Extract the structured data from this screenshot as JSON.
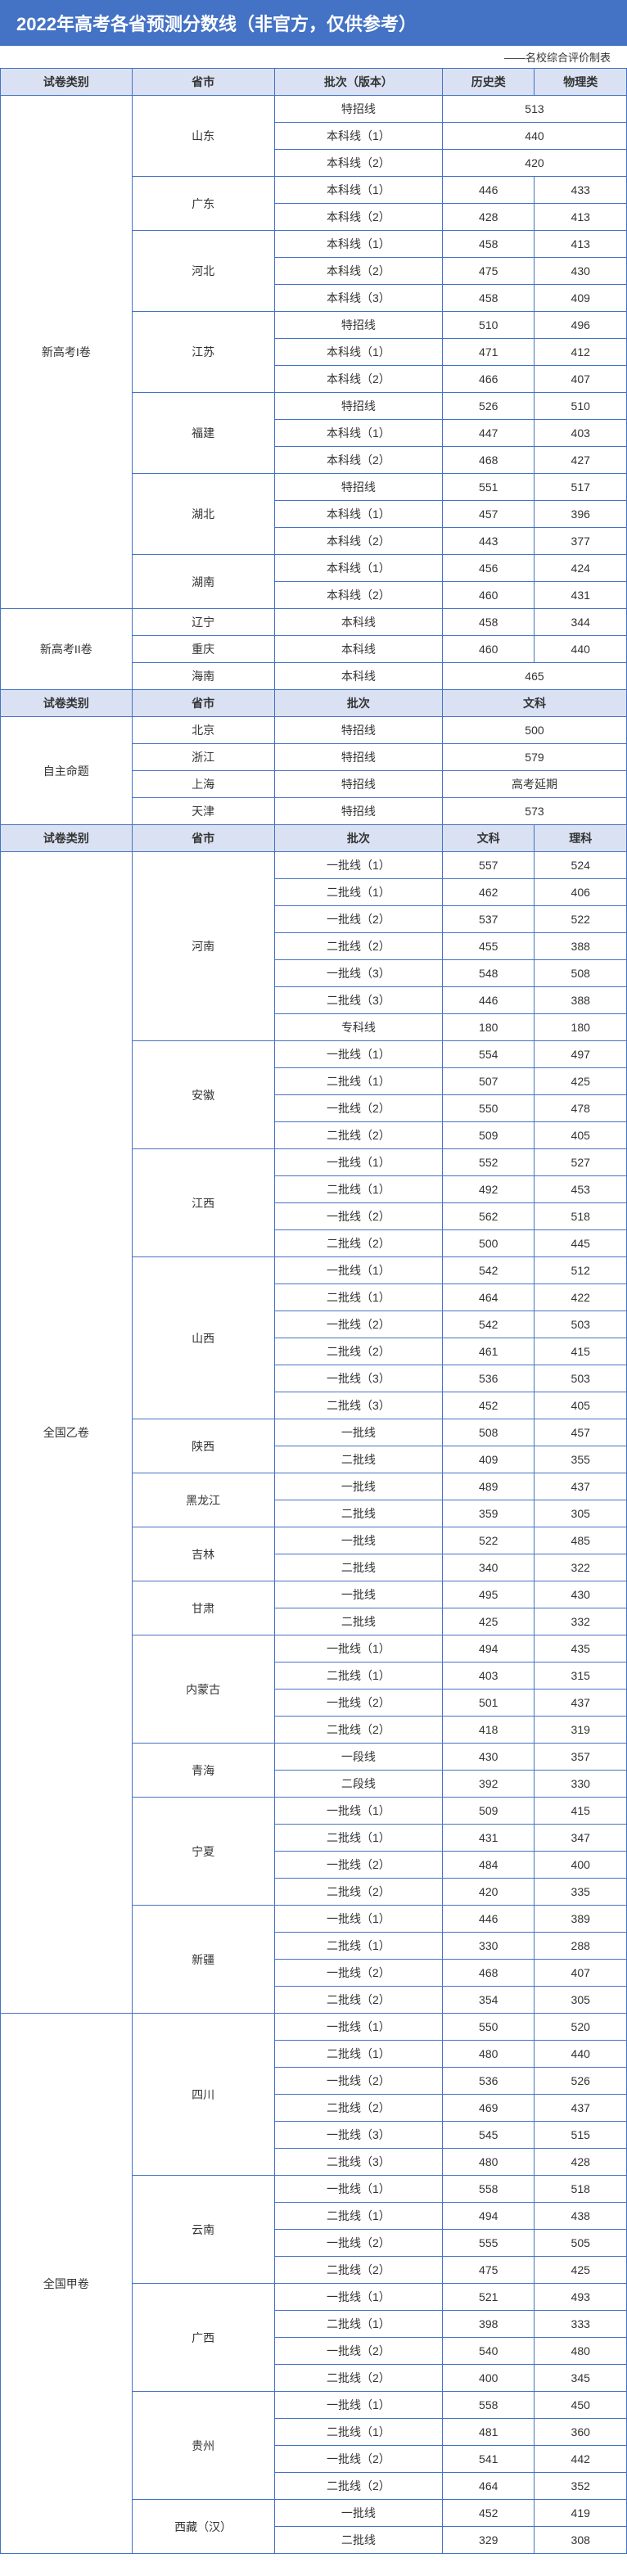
{
  "title": "2022年高考各省预测分数线（非官方，仅供参考）",
  "subtitle": "——名校综合评价制表",
  "colors": {
    "header_bg": "#4472c4",
    "header_text": "#ffffff",
    "subheader_bg": "#d9e1f2",
    "border": "#4472c4",
    "text": "#333333"
  },
  "h1": {
    "c1": "试卷类别",
    "c2": "省市",
    "c3": "批次（版本）",
    "c4": "历史类",
    "c5": "物理类"
  },
  "s1": {
    "label": "新高考I卷",
    "provinces": [
      {
        "name": "山东",
        "rows": [
          {
            "batch": "特招线",
            "a": "513",
            "b": "",
            "merge": true
          },
          {
            "batch": "本科线（1）",
            "a": "440",
            "b": "",
            "merge": true
          },
          {
            "batch": "本科线（2）",
            "a": "420",
            "b": "",
            "merge": true
          }
        ]
      },
      {
        "name": "广东",
        "rows": [
          {
            "batch": "本科线（1）",
            "a": "446",
            "b": "433"
          },
          {
            "batch": "本科线（2）",
            "a": "428",
            "b": "413"
          }
        ]
      },
      {
        "name": "河北",
        "rows": [
          {
            "batch": "本科线（1）",
            "a": "458",
            "b": "413"
          },
          {
            "batch": "本科线（2）",
            "a": "475",
            "b": "430"
          },
          {
            "batch": "本科线（3）",
            "a": "458",
            "b": "409"
          }
        ]
      },
      {
        "name": "江苏",
        "rows": [
          {
            "batch": "特招线",
            "a": "510",
            "b": "496"
          },
          {
            "batch": "本科线（1）",
            "a": "471",
            "b": "412"
          },
          {
            "batch": "本科线（2）",
            "a": "466",
            "b": "407"
          }
        ]
      },
      {
        "name": "福建",
        "rows": [
          {
            "batch": "特招线",
            "a": "526",
            "b": "510"
          },
          {
            "batch": "本科线（1）",
            "a": "447",
            "b": "403"
          },
          {
            "batch": "本科线（2）",
            "a": "468",
            "b": "427"
          }
        ]
      },
      {
        "name": "湖北",
        "rows": [
          {
            "batch": "特招线",
            "a": "551",
            "b": "517"
          },
          {
            "batch": "本科线（1）",
            "a": "457",
            "b": "396"
          },
          {
            "batch": "本科线（2）",
            "a": "443",
            "b": "377"
          }
        ]
      },
      {
        "name": "湖南",
        "rows": [
          {
            "batch": "本科线（1）",
            "a": "456",
            "b": "424"
          },
          {
            "batch": "本科线（2）",
            "a": "460",
            "b": "431"
          }
        ]
      }
    ]
  },
  "s2": {
    "label": "新高考II卷",
    "provinces": [
      {
        "name": "辽宁",
        "rows": [
          {
            "batch": "本科线",
            "a": "458",
            "b": "344"
          }
        ]
      },
      {
        "name": "重庆",
        "rows": [
          {
            "batch": "本科线",
            "a": "460",
            "b": "440"
          }
        ]
      },
      {
        "name": "海南",
        "rows": [
          {
            "batch": "本科线",
            "a": "465",
            "b": "",
            "merge": true
          }
        ]
      }
    ]
  },
  "h3": {
    "c1": "试卷类别",
    "c2": "省市",
    "c3": "批次",
    "c4": "文科",
    "c5": ""
  },
  "s3": {
    "label": "自主命题",
    "provinces": [
      {
        "name": "北京",
        "rows": [
          {
            "batch": "特招线",
            "a": "500",
            "b": "",
            "merge": true
          }
        ]
      },
      {
        "name": "浙江",
        "rows": [
          {
            "batch": "特招线",
            "a": "579",
            "b": "",
            "merge": true
          }
        ]
      },
      {
        "name": "上海",
        "rows": [
          {
            "batch": "特招线",
            "a": "高考延期",
            "b": "",
            "merge": true
          }
        ]
      },
      {
        "name": "天津",
        "rows": [
          {
            "batch": "特招线",
            "a": "573",
            "b": "",
            "merge": true
          }
        ]
      }
    ]
  },
  "h4": {
    "c1": "试卷类别",
    "c2": "省市",
    "c3": "批次",
    "c4": "文科",
    "c5": "理科"
  },
  "s4": {
    "label": "全国乙卷",
    "provinces": [
      {
        "name": "河南",
        "rows": [
          {
            "batch": "一批线（1）",
            "a": "557",
            "b": "524"
          },
          {
            "batch": "二批线（1）",
            "a": "462",
            "b": "406"
          },
          {
            "batch": "一批线（2）",
            "a": "537",
            "b": "522"
          },
          {
            "batch": "二批线（2）",
            "a": "455",
            "b": "388"
          },
          {
            "batch": "一批线（3）",
            "a": "548",
            "b": "508"
          },
          {
            "batch": "二批线（3）",
            "a": "446",
            "b": "388"
          },
          {
            "batch": "专科线",
            "a": "180",
            "b": "180"
          }
        ]
      },
      {
        "name": "安徽",
        "rows": [
          {
            "batch": "一批线（1）",
            "a": "554",
            "b": "497"
          },
          {
            "batch": "二批线（1）",
            "a": "507",
            "b": "425"
          },
          {
            "batch": "一批线（2）",
            "a": "550",
            "b": "478"
          },
          {
            "batch": "二批线（2）",
            "a": "509",
            "b": "405"
          }
        ]
      },
      {
        "name": "江西",
        "rows": [
          {
            "batch": "一批线（1）",
            "a": "552",
            "b": "527"
          },
          {
            "batch": "二批线（1）",
            "a": "492",
            "b": "453"
          },
          {
            "batch": "一批线（2）",
            "a": "562",
            "b": "518"
          },
          {
            "batch": "二批线（2）",
            "a": "500",
            "b": "445"
          }
        ]
      },
      {
        "name": "山西",
        "rows": [
          {
            "batch": "一批线（1）",
            "a": "542",
            "b": "512"
          },
          {
            "batch": "二批线（1）",
            "a": "464",
            "b": "422"
          },
          {
            "batch": "一批线（2）",
            "a": "542",
            "b": "503"
          },
          {
            "batch": "二批线（2）",
            "a": "461",
            "b": "415"
          },
          {
            "batch": "一批线（3）",
            "a": "536",
            "b": "503"
          },
          {
            "batch": "二批线（3）",
            "a": "452",
            "b": "405"
          }
        ]
      },
      {
        "name": "陕西",
        "rows": [
          {
            "batch": "一批线",
            "a": "508",
            "b": "457"
          },
          {
            "batch": "二批线",
            "a": "409",
            "b": "355"
          }
        ]
      },
      {
        "name": "黑龙江",
        "rows": [
          {
            "batch": "一批线",
            "a": "489",
            "b": "437"
          },
          {
            "batch": "二批线",
            "a": "359",
            "b": "305"
          }
        ]
      },
      {
        "name": "吉林",
        "rows": [
          {
            "batch": "一批线",
            "a": "522",
            "b": "485"
          },
          {
            "batch": "二批线",
            "a": "340",
            "b": "322"
          }
        ]
      },
      {
        "name": "甘肃",
        "rows": [
          {
            "batch": "一批线",
            "a": "495",
            "b": "430"
          },
          {
            "batch": "二批线",
            "a": "425",
            "b": "332"
          }
        ]
      },
      {
        "name": "内蒙古",
        "rows": [
          {
            "batch": "一批线（1）",
            "a": "494",
            "b": "435"
          },
          {
            "batch": "二批线（1）",
            "a": "403",
            "b": "315"
          },
          {
            "batch": "一批线（2）",
            "a": "501",
            "b": "437"
          },
          {
            "batch": "二批线（2）",
            "a": "418",
            "b": "319"
          }
        ]
      },
      {
        "name": "青海",
        "rows": [
          {
            "batch": "一段线",
            "a": "430",
            "b": "357"
          },
          {
            "batch": "二段线",
            "a": "392",
            "b": "330"
          }
        ]
      },
      {
        "name": "宁夏",
        "rows": [
          {
            "batch": "一批线（1）",
            "a": "509",
            "b": "415"
          },
          {
            "batch": "二批线（1）",
            "a": "431",
            "b": "347"
          },
          {
            "batch": "一批线（2）",
            "a": "484",
            "b": "400"
          },
          {
            "batch": "二批线（2）",
            "a": "420",
            "b": "335"
          }
        ]
      },
      {
        "name": "新疆",
        "rows": [
          {
            "batch": "一批线（1）",
            "a": "446",
            "b": "389"
          },
          {
            "batch": "二批线（1）",
            "a": "330",
            "b": "288"
          },
          {
            "batch": "一批线（2）",
            "a": "468",
            "b": "407"
          },
          {
            "batch": "二批线（2）",
            "a": "354",
            "b": "305"
          }
        ]
      }
    ]
  },
  "s5": {
    "label": "全国甲卷",
    "provinces": [
      {
        "name": "四川",
        "rows": [
          {
            "batch": "一批线（1）",
            "a": "550",
            "b": "520"
          },
          {
            "batch": "二批线（1）",
            "a": "480",
            "b": "440"
          },
          {
            "batch": "一批线（2）",
            "a": "536",
            "b": "526"
          },
          {
            "batch": "二批线（2）",
            "a": "469",
            "b": "437"
          },
          {
            "batch": "一批线（3）",
            "a": "545",
            "b": "515"
          },
          {
            "batch": "二批线（3）",
            "a": "480",
            "b": "428"
          }
        ]
      },
      {
        "name": "云南",
        "rows": [
          {
            "batch": "一批线（1）",
            "a": "558",
            "b": "518"
          },
          {
            "batch": "二批线（1）",
            "a": "494",
            "b": "438"
          },
          {
            "batch": "一批线（2）",
            "a": "555",
            "b": "505"
          },
          {
            "batch": "二批线（2）",
            "a": "475",
            "b": "425"
          }
        ]
      },
      {
        "name": "广西",
        "rows": [
          {
            "batch": "一批线（1）",
            "a": "521",
            "b": "493"
          },
          {
            "batch": "二批线（1）",
            "a": "398",
            "b": "333"
          },
          {
            "batch": "一批线（2）",
            "a": "540",
            "b": "480"
          },
          {
            "batch": "二批线（2）",
            "a": "400",
            "b": "345"
          }
        ]
      },
      {
        "name": "贵州",
        "rows": [
          {
            "batch": "一批线（1）",
            "a": "558",
            "b": "450"
          },
          {
            "batch": "二批线（1）",
            "a": "481",
            "b": "360"
          },
          {
            "batch": "一批线（2）",
            "a": "541",
            "b": "442"
          },
          {
            "batch": "二批线（2）",
            "a": "464",
            "b": "352"
          }
        ]
      },
      {
        "name": "西藏（汉）",
        "rows": [
          {
            "batch": "一批线",
            "a": "452",
            "b": "419"
          },
          {
            "batch": "二批线",
            "a": "329",
            "b": "308"
          }
        ]
      }
    ]
  }
}
